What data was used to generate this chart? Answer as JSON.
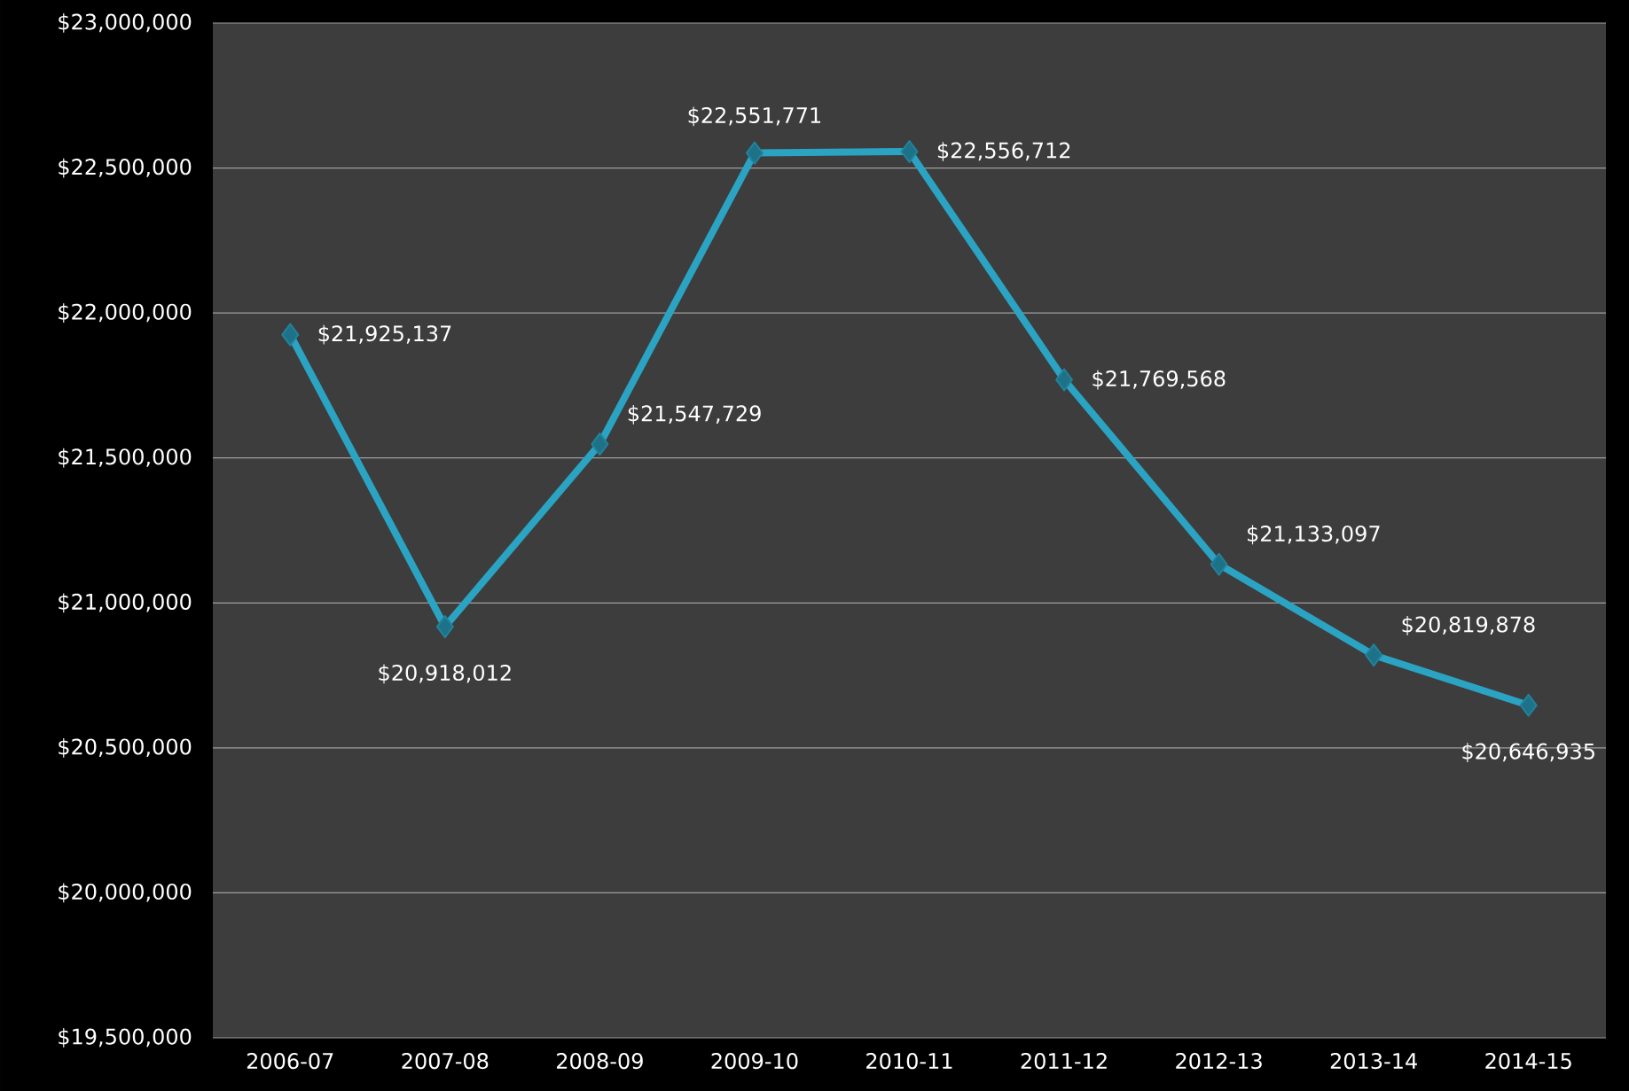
{
  "chart_data": {
    "type": "line",
    "categories": [
      "2006-07",
      "2007-08",
      "2008-09",
      "2009-10",
      "2010-11",
      "2011-12",
      "2012-13",
      "2013-14",
      "2014-15"
    ],
    "series": [
      {
        "color": "#2ba3c3",
        "values": [
          21925137,
          20918012,
          21547729,
          22551771,
          22556712,
          21769568,
          21133097,
          20819878,
          20646935
        ],
        "value_labels": [
          "$21,925,137",
          "$20,918,012",
          "$21,547,729",
          "$22,551,771",
          "$22,556,712",
          "$21,769,568",
          "$21,133,097",
          "$20,819,878",
          "$20,646,935"
        ]
      }
    ],
    "ylim": [
      19500000,
      23000000
    ],
    "yticks": [
      {
        "value": 19500000,
        "label": "$19,500,000"
      },
      {
        "value": 20000000,
        "label": "$20,000,000"
      },
      {
        "value": 20500000,
        "label": "$20,500,000"
      },
      {
        "value": 21000000,
        "label": "$21,000,000"
      },
      {
        "value": 21500000,
        "label": "$21,500,000"
      },
      {
        "value": 22000000,
        "label": "$22,000,000"
      },
      {
        "value": 22500000,
        "label": "$22,500,000"
      },
      {
        "value": 23000000,
        "label": "$23,000,000"
      }
    ],
    "grid": "y",
    "marker": "diamond",
    "line_style": "solid"
  }
}
